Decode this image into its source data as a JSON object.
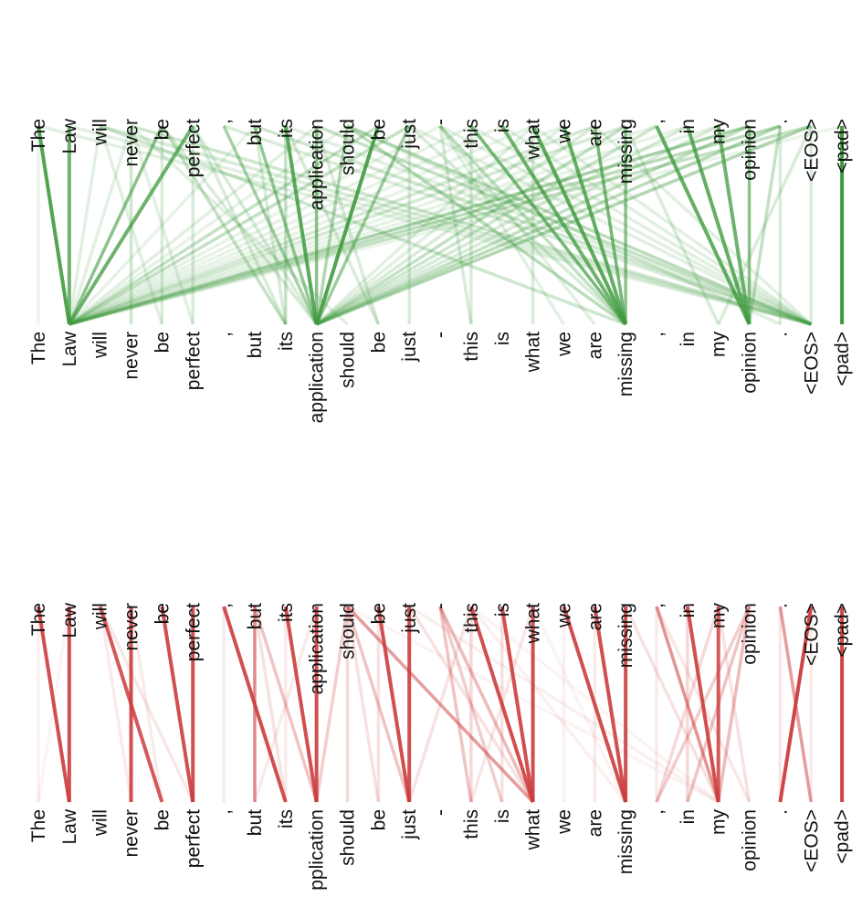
{
  "top_tokens": [
    "The",
    "Law",
    "will",
    "never",
    "be",
    "perfect",
    ",",
    "but",
    "its",
    "application",
    "should",
    "be",
    "just",
    "-",
    "this",
    "is",
    "what",
    "we",
    "are",
    "missing",
    ",",
    "in",
    "my",
    "opinion",
    ".",
    "<EOS>",
    "<pad>"
  ],
  "colors": {
    "green": "#3f9a3f",
    "red": "#cc3c3c"
  },
  "panels": [
    {
      "name": "green-attention-panel",
      "color_key": "green",
      "source_tokens": [
        "The",
        "Law",
        "will",
        "never",
        "be",
        "perfect",
        ",",
        "but",
        "its",
        "application",
        "should",
        "be",
        "just",
        "-",
        "this",
        "is",
        "what",
        "we",
        "are",
        "missing",
        ",",
        "in",
        "my",
        "opinion",
        ".",
        "<EOS>",
        "<pad>"
      ],
      "target_tokens": [
        "The",
        "Law",
        "will",
        "never",
        "be",
        "perfect",
        ",",
        "but",
        "its",
        "application",
        "should",
        "be",
        "just",
        "-",
        "this",
        "is",
        "what",
        "we",
        "are",
        "missing",
        ",",
        "in",
        "my",
        "opinion",
        ".",
        "<EOS>",
        "<pad>"
      ],
      "links": [
        [
          0,
          1,
          0.9
        ],
        [
          1,
          1,
          0.75
        ],
        [
          4,
          1,
          0.6
        ],
        [
          5,
          1,
          0.75
        ],
        [
          23,
          1,
          0.45
        ],
        [
          24,
          1,
          0.35
        ],
        [
          25,
          1,
          0.3
        ],
        [
          18,
          1,
          0.22
        ],
        [
          19,
          1,
          0.22
        ],
        [
          11,
          1,
          0.3
        ],
        [
          12,
          1,
          0.3
        ],
        [
          2,
          1,
          0.15
        ],
        [
          3,
          1,
          0.15
        ],
        [
          7,
          1,
          0.12
        ],
        [
          9,
          1,
          0.15
        ],
        [
          13,
          1,
          0.12
        ],
        [
          14,
          1,
          0.12
        ],
        [
          15,
          1,
          0.12
        ],
        [
          20,
          1,
          0.12
        ],
        [
          21,
          1,
          0.12
        ],
        [
          22,
          1,
          0.12
        ],
        [
          16,
          1,
          0.12
        ],
        [
          17,
          1,
          0.12
        ],
        [
          26,
          1,
          0.1
        ],
        [
          10,
          1,
          0.12
        ],
        [
          6,
          9,
          0.45
        ],
        [
          7,
          9,
          0.55
        ],
        [
          8,
          9,
          0.85
        ],
        [
          9,
          9,
          0.6
        ],
        [
          10,
          9,
          0.4
        ],
        [
          11,
          9,
          0.9
        ],
        [
          12,
          9,
          0.5
        ],
        [
          24,
          9,
          0.35
        ],
        [
          25,
          9,
          0.4
        ],
        [
          23,
          9,
          0.3
        ],
        [
          19,
          9,
          0.3
        ],
        [
          20,
          9,
          0.25
        ],
        [
          22,
          9,
          0.2
        ],
        [
          5,
          9,
          0.2
        ],
        [
          4,
          9,
          0.2
        ],
        [
          18,
          9,
          0.2
        ],
        [
          21,
          9,
          0.2
        ],
        [
          17,
          9,
          0.15
        ],
        [
          16,
          9,
          0.15
        ],
        [
          14,
          19,
          0.7
        ],
        [
          15,
          19,
          0.75
        ],
        [
          16,
          19,
          0.85
        ],
        [
          17,
          19,
          0.8
        ],
        [
          18,
          19,
          0.7
        ],
        [
          19,
          19,
          0.6
        ],
        [
          13,
          19,
          0.3
        ],
        [
          10,
          19,
          0.35
        ],
        [
          2,
          19,
          0.25
        ],
        [
          12,
          19,
          0.2
        ],
        [
          20,
          23,
          0.8
        ],
        [
          21,
          23,
          0.8
        ],
        [
          22,
          23,
          0.75
        ],
        [
          23,
          23,
          0.6
        ],
        [
          24,
          23,
          0.3
        ],
        [
          10,
          25,
          0.35
        ],
        [
          9,
          25,
          0.3
        ],
        [
          3,
          25,
          0.25
        ],
        [
          2,
          25,
          0.2
        ],
        [
          6,
          25,
          0.2
        ],
        [
          7,
          25,
          0.25
        ],
        [
          0,
          25,
          0.15
        ],
        [
          1,
          25,
          0.15
        ],
        [
          18,
          25,
          0.15
        ],
        [
          16,
          25,
          0.15
        ],
        [
          15,
          25,
          0.15
        ],
        [
          14,
          25,
          0.15
        ],
        [
          25,
          25,
          0.2
        ],
        [
          13,
          25,
          0.15
        ],
        [
          12,
          25,
          0.15
        ],
        [
          8,
          25,
          0.15
        ],
        [
          26,
          26,
          1.0
        ],
        [
          3,
          3,
          0.25
        ],
        [
          4,
          4,
          0.2
        ],
        [
          5,
          5,
          0.2
        ],
        [
          5,
          8,
          0.2
        ],
        [
          7,
          8,
          0.2
        ],
        [
          8,
          8,
          0.3
        ],
        [
          4,
          8,
          0.3
        ],
        [
          9,
          11,
          0.2
        ],
        [
          8,
          11,
          0.2
        ],
        [
          12,
          12,
          0.2
        ],
        [
          13,
          14,
          0.2
        ],
        [
          14,
          14,
          0.2
        ],
        [
          16,
          16,
          0.2
        ],
        [
          19,
          22,
          0.2
        ],
        [
          25,
          22,
          0.2
        ],
        [
          24,
          24,
          0.2
        ],
        [
          13,
          17,
          0.15
        ],
        [
          13,
          18,
          0.15
        ],
        [
          2,
          4,
          0.15
        ],
        [
          3,
          5,
          0.15
        ],
        [
          0,
          0,
          0.1
        ],
        [
          3,
          10,
          0.15
        ],
        [
          10,
          24,
          0.15
        ]
      ]
    },
    {
      "name": "red-attention-panel",
      "color_key": "red",
      "source_tokens": [
        "The",
        "Law",
        "will",
        "never",
        "be",
        "perfect",
        ",",
        "but",
        "its",
        "application",
        "should",
        "be",
        "just",
        "-",
        "this",
        "is",
        "what",
        "we",
        "are",
        "missing",
        ",",
        "in",
        "my",
        "opinion",
        ".",
        "<EOS>",
        "<pad>"
      ],
      "target_tokens": [
        "The",
        "Law",
        "will",
        "never",
        "be",
        "perfect",
        ",",
        "but",
        "its",
        "pplication",
        "should",
        "be",
        "just",
        "-",
        "this",
        "is",
        "what",
        "we",
        "are",
        "missing",
        ",",
        "in",
        "my",
        "opinion",
        ".",
        "<EOS>",
        "<pad>"
      ],
      "links": [
        [
          0,
          1,
          0.9
        ],
        [
          1,
          1,
          0.9
        ],
        [
          2,
          4,
          0.85
        ],
        [
          3,
          3,
          0.9
        ],
        [
          4,
          5,
          0.9
        ],
        [
          5,
          5,
          0.9
        ],
        [
          6,
          8,
          0.9
        ],
        [
          7,
          7,
          0.6
        ],
        [
          8,
          9,
          0.9
        ],
        [
          9,
          9,
          0.9
        ],
        [
          10,
          16,
          0.5
        ],
        [
          11,
          12,
          0.9
        ],
        [
          12,
          12,
          0.9
        ],
        [
          13,
          16,
          0.35
        ],
        [
          14,
          16,
          0.9
        ],
        [
          15,
          16,
          0.9
        ],
        [
          16,
          16,
          0.9
        ],
        [
          17,
          19,
          0.9
        ],
        [
          18,
          19,
          0.9
        ],
        [
          19,
          19,
          0.9
        ],
        [
          20,
          22,
          0.55
        ],
        [
          21,
          22,
          0.9
        ],
        [
          22,
          22,
          0.85
        ],
        [
          23,
          21,
          0.3
        ],
        [
          23,
          20,
          0.25
        ],
        [
          23,
          22,
          0.35
        ],
        [
          24,
          25,
          0.5
        ],
        [
          25,
          24,
          0.95
        ],
        [
          26,
          26,
          0.95
        ],
        [
          7,
          9,
          0.3
        ],
        [
          2,
          5,
          0.12
        ],
        [
          10,
          9,
          0.25
        ],
        [
          10,
          12,
          0.3
        ],
        [
          10,
          10,
          0.2
        ],
        [
          10,
          11,
          0.15
        ],
        [
          13,
          14,
          0.3
        ],
        [
          13,
          15,
          0.25
        ],
        [
          14,
          14,
          0.2
        ],
        [
          12,
          16,
          0.15
        ],
        [
          14,
          12,
          0.15
        ],
        [
          16,
          14,
          0.12
        ],
        [
          11,
          11,
          0.15
        ],
        [
          15,
          15,
          0.15
        ],
        [
          22,
          20,
          0.2
        ],
        [
          21,
          21,
          0.2
        ],
        [
          22,
          23,
          0.15
        ],
        [
          20,
          20,
          0.1
        ],
        [
          19,
          22,
          0.15
        ],
        [
          12,
          22,
          0.08
        ],
        [
          14,
          22,
          0.06
        ],
        [
          10,
          22,
          0.06
        ],
        [
          0,
          0,
          0.08
        ],
        [
          1,
          0,
          0.06
        ],
        [
          2,
          3,
          0.1
        ],
        [
          3,
          4,
          0.1
        ],
        [
          6,
          6,
          0.1
        ],
        [
          7,
          8,
          0.15
        ],
        [
          18,
          18,
          0.1
        ],
        [
          24,
          24,
          0.12
        ],
        [
          9,
          7,
          0.1
        ],
        [
          14,
          19,
          0.08
        ],
        [
          20,
          23,
          0.12
        ],
        [
          25,
          25,
          0.1
        ],
        [
          16,
          19,
          0.06
        ],
        [
          8,
          8,
          0.1
        ],
        [
          17,
          17,
          0.08
        ]
      ]
    }
  ]
}
